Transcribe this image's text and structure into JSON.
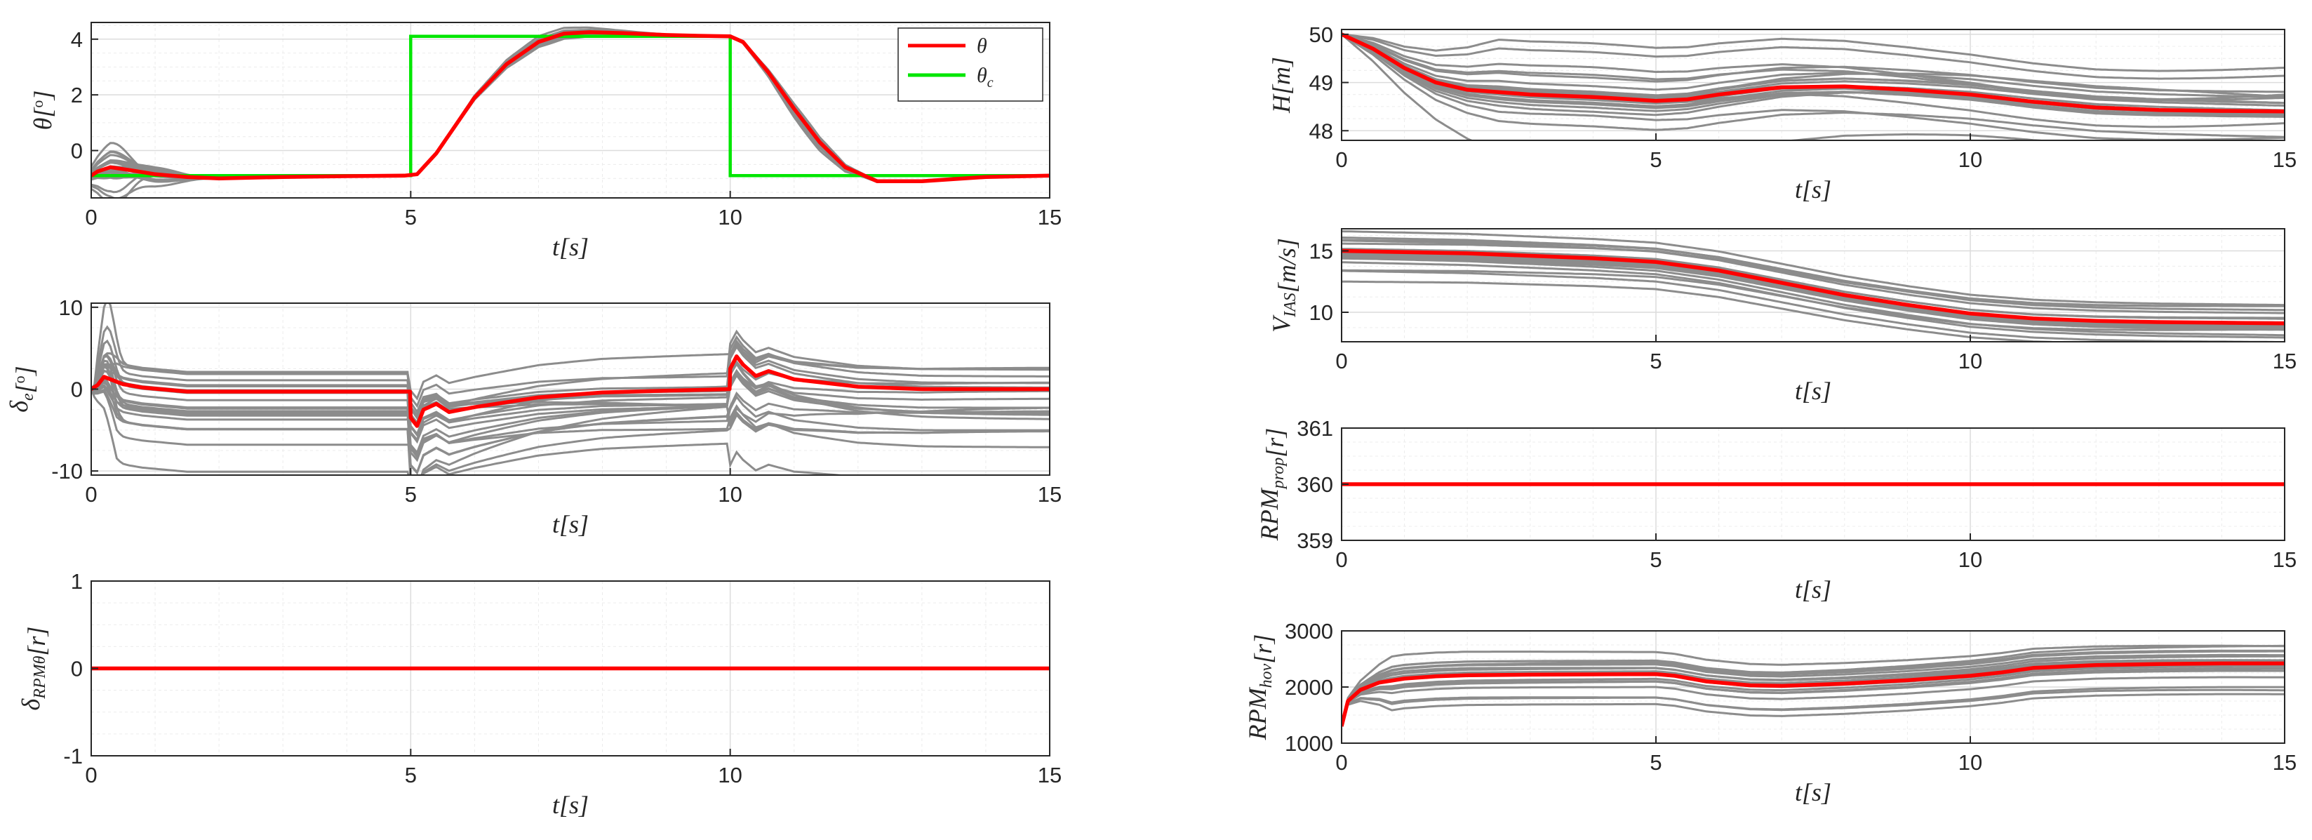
{
  "colors": {
    "gray": "#8c8c8c",
    "red": "#ff0000",
    "green": "#00e600",
    "axis": "#262626"
  },
  "chart_data": [
    {
      "id": "theta",
      "type": "line",
      "xlabel": "t[s]",
      "ylabel": "θ[°]",
      "xlim": [
        0,
        15
      ],
      "ylim": [
        -1.7,
        4.6
      ],
      "xticks": [
        "0",
        "5",
        "10",
        "15"
      ],
      "yticks": [
        "0",
        "2",
        "4"
      ],
      "legend": {
        "position": "top-right",
        "entries": [
          {
            "label": "θ",
            "color": "#ff0000"
          },
          {
            "label": "θc",
            "color": "#00e600"
          }
        ]
      },
      "reference": {
        "name": "θc",
        "color": "#00e600",
        "x": [
          0,
          5,
          5,
          10,
          10,
          15
        ],
        "y": [
          -0.9,
          -0.9,
          4.1,
          4.1,
          -0.9,
          -0.9
        ]
      },
      "nominal": {
        "name": "θ",
        "color": "#ff0000",
        "x": [
          0,
          0.1,
          0.3,
          0.6,
          1,
          1.5,
          2,
          3,
          4,
          4.9,
          5.1,
          5.4,
          5.7,
          6,
          6.5,
          7,
          7.4,
          7.8,
          8.3,
          9,
          9.5,
          10,
          10.2,
          10.6,
          11,
          11.4,
          11.8,
          12.3,
          13,
          14,
          15
        ],
        "y": [
          -0.9,
          -0.75,
          -0.6,
          -0.7,
          -0.85,
          -0.95,
          -1.0,
          -0.95,
          -0.92,
          -0.9,
          -0.85,
          -0.1,
          0.9,
          1.9,
          3.1,
          3.9,
          4.2,
          4.25,
          4.22,
          4.15,
          4.12,
          4.1,
          3.9,
          2.8,
          1.5,
          0.3,
          -0.6,
          -1.1,
          -1.1,
          -0.95,
          -0.9
        ]
      },
      "ensemble": {
        "count": 22,
        "color": "#8c8c8c",
        "note": "Monte Carlo runs"
      }
    },
    {
      "id": "delta_e",
      "type": "line",
      "xlabel": "t[s]",
      "ylabel": "δe[°]",
      "xlim": [
        0,
        15
      ],
      "ylim": [
        -10.5,
        10.5
      ],
      "xticks": [
        "0",
        "5",
        "10",
        "15"
      ],
      "yticks": [
        "-10",
        "0",
        "10"
      ],
      "nominal": {
        "name": "δe",
        "color": "#ff0000",
        "x": [
          0,
          0.1,
          0.2,
          0.3,
          0.5,
          0.8,
          1.5,
          3,
          4.99,
          5,
          5.1,
          5.2,
          5.4,
          5.6,
          6,
          7,
          8,
          9,
          9.99,
          10,
          10.1,
          10.2,
          10.4,
          10.6,
          11,
          12,
          13,
          14,
          15
        ],
        "y": [
          0,
          0.5,
          1.5,
          1.2,
          0.6,
          0.2,
          -0.3,
          -0.3,
          -0.3,
          -3.5,
          -4.5,
          -2.5,
          -1.8,
          -2.8,
          -2.2,
          -1.0,
          -0.4,
          -0.2,
          0,
          2.5,
          4.0,
          3.0,
          1.6,
          2.2,
          1.2,
          0.3,
          0,
          0,
          0
        ]
      },
      "ensemble": {
        "count": 22,
        "color": "#8c8c8c",
        "note": "Monte Carlo runs"
      }
    },
    {
      "id": "delta_rpm",
      "type": "line",
      "xlabel": "t[s]",
      "ylabel": "δRPMθ[r]",
      "xlim": [
        0,
        15
      ],
      "ylim": [
        -1,
        1
      ],
      "xticks": [
        "0",
        "5",
        "10",
        "15"
      ],
      "yticks": [
        "-1",
        "0",
        "1"
      ],
      "nominal": {
        "name": "δRPMθ",
        "color": "#ff0000",
        "x": [
          0,
          15
        ],
        "y": [
          0,
          0
        ]
      }
    },
    {
      "id": "H",
      "type": "line",
      "xlabel": "t[s]",
      "ylabel": "H[m]",
      "xlim": [
        0,
        15
      ],
      "ylim": [
        47.8,
        50.1
      ],
      "xticks": [
        "0",
        "5",
        "10",
        "15"
      ],
      "yticks": [
        "48",
        "49",
        "50"
      ],
      "nominal": {
        "name": "H",
        "color": "#ff0000",
        "x": [
          0,
          0.5,
          1,
          1.5,
          2,
          3,
          4,
          5,
          5.5,
          6,
          7,
          8,
          9,
          10,
          11,
          12,
          13,
          14,
          15
        ],
        "y": [
          50,
          49.7,
          49.3,
          49.0,
          48.85,
          48.75,
          48.7,
          48.62,
          48.65,
          48.75,
          48.9,
          48.92,
          48.85,
          48.75,
          48.6,
          48.48,
          48.43,
          48.41,
          48.4
        ]
      },
      "ensemble": {
        "count": 22,
        "color": "#8c8c8c",
        "note": "Monte Carlo runs"
      }
    },
    {
      "id": "V",
      "type": "line",
      "xlabel": "t[s]",
      "ylabel": "VIAS[m/s]",
      "xlim": [
        0,
        15
      ],
      "ylim": [
        7.6,
        16.8
      ],
      "xticks": [
        "0",
        "5",
        "10",
        "15"
      ],
      "yticks": [
        "10",
        "15"
      ],
      "nominal": {
        "name": "VIAS",
        "color": "#ff0000",
        "x": [
          0,
          2,
          4,
          5,
          6,
          7,
          8,
          9,
          10,
          11,
          12,
          13,
          14,
          15
        ],
        "y": [
          15,
          14.8,
          14.4,
          14.1,
          13.4,
          12.4,
          11.4,
          10.6,
          9.9,
          9.5,
          9.3,
          9.2,
          9.15,
          9.1
        ]
      },
      "ensemble": {
        "count": 22,
        "color": "#8c8c8c",
        "note": "Monte Carlo runs"
      }
    },
    {
      "id": "rpm_prop",
      "type": "line",
      "xlabel": "t[s]",
      "ylabel": "RPMprop[r]",
      "xlim": [
        0,
        15
      ],
      "ylim": [
        359,
        361
      ],
      "xticks": [
        "0",
        "5",
        "10",
        "15"
      ],
      "yticks": [
        "359",
        "360",
        "361"
      ],
      "nominal": {
        "name": "RPMprop",
        "color": "#ff0000",
        "x": [
          0,
          15
        ],
        "y": [
          360,
          360
        ]
      }
    },
    {
      "id": "rpm_hov",
      "type": "line",
      "xlabel": "t[s]",
      "ylabel": "RPMhov[r]",
      "xlim": [
        0,
        15
      ],
      "ylim": [
        1000,
        3000
      ],
      "xticks": [
        "0",
        "5",
        "10",
        "15"
      ],
      "yticks": [
        "1000",
        "2000",
        "3000"
      ],
      "nominal": {
        "name": "RPMhov",
        "color": "#ff0000",
        "x": [
          0,
          0.1,
          0.3,
          0.6,
          1,
          1.5,
          2,
          3,
          4,
          5,
          5.3,
          5.8,
          6.5,
          7,
          8,
          9,
          10,
          10.5,
          11,
          12,
          13,
          14,
          15
        ],
        "y": [
          1300,
          1750,
          1950,
          2080,
          2150,
          2190,
          2210,
          2220,
          2225,
          2230,
          2200,
          2100,
          2030,
          2020,
          2060,
          2120,
          2200,
          2260,
          2340,
          2390,
          2410,
          2420,
          2420
        ]
      },
      "ensemble": {
        "count": 22,
        "color": "#8c8c8c",
        "note": "Monte Carlo runs"
      }
    }
  ]
}
